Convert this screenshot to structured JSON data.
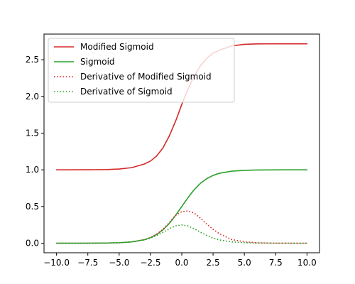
{
  "chart_data": {
    "type": "line",
    "title": "",
    "xlabel": "",
    "ylabel": "",
    "xlim": [
      -11,
      11
    ],
    "ylim": [
      -0.13,
      2.85
    ],
    "xticks": [
      -10.0,
      -7.5,
      -5.0,
      -2.5,
      0.0,
      2.5,
      5.0,
      7.5,
      10.0
    ],
    "xtick_labels": [
      "−10.0",
      "−7.5",
      "−5.0",
      "−2.5",
      "0.0",
      "2.5",
      "5.0",
      "7.5",
      "10.0"
    ],
    "yticks": [
      0.0,
      0.5,
      1.0,
      1.5,
      2.0,
      2.5
    ],
    "ytick_labels": [
      "0.0",
      "0.5",
      "1.0",
      "1.5",
      "2.0",
      "2.5"
    ],
    "grid": false,
    "legend_position": "top-left",
    "x": [
      -10,
      -9,
      -8,
      -7,
      -6,
      -5,
      -4,
      -3,
      -2.5,
      -2,
      -1.5,
      -1,
      -0.5,
      0,
      0.5,
      1,
      1.5,
      2,
      2.5,
      3,
      4,
      5,
      6,
      7,
      8,
      9,
      10
    ],
    "series": [
      {
        "name": "Modified Sigmoid",
        "color": "#d62728",
        "style": "solid",
        "values": [
          1.0,
          1.0,
          1.001,
          1.002,
          1.004,
          1.011,
          1.03,
          1.078,
          1.12,
          1.19,
          1.3,
          1.46,
          1.66,
          1.89,
          2.1,
          2.28,
          2.42,
          2.52,
          2.59,
          2.63,
          2.69,
          2.71,
          2.716,
          2.717,
          2.718,
          2.718,
          2.718
        ]
      },
      {
        "name": "Sigmoid",
        "color": "#2ca02c",
        "style": "solid",
        "values": [
          0.0,
          0.0001,
          0.0003,
          0.0009,
          0.0025,
          0.0067,
          0.018,
          0.047,
          0.076,
          0.119,
          0.182,
          0.269,
          0.378,
          0.5,
          0.622,
          0.731,
          0.818,
          0.881,
          0.924,
          0.953,
          0.982,
          0.993,
          0.998,
          0.999,
          1.0,
          1.0,
          1.0
        ]
      },
      {
        "name": "Derivative of Modified Sigmoid",
        "color": "#d62728",
        "style": "dotted",
        "values": [
          0.0,
          0.0001,
          0.0003,
          0.0009,
          0.0025,
          0.0068,
          0.018,
          0.048,
          0.077,
          0.124,
          0.19,
          0.28,
          0.38,
          0.43,
          0.44,
          0.41,
          0.34,
          0.26,
          0.19,
          0.13,
          0.05,
          0.02,
          0.006,
          0.002,
          0.001,
          0.0,
          0.0
        ]
      },
      {
        "name": "Derivative of Sigmoid",
        "color": "#2ca02c",
        "style": "dotted",
        "values": [
          0.0,
          0.0001,
          0.0003,
          0.0009,
          0.0025,
          0.0066,
          0.0177,
          0.0452,
          0.0701,
          0.105,
          0.149,
          0.197,
          0.235,
          0.25,
          0.235,
          0.197,
          0.149,
          0.105,
          0.0701,
          0.0452,
          0.0177,
          0.0066,
          0.0025,
          0.0009,
          0.0003,
          0.0001,
          0.0
        ]
      }
    ]
  }
}
